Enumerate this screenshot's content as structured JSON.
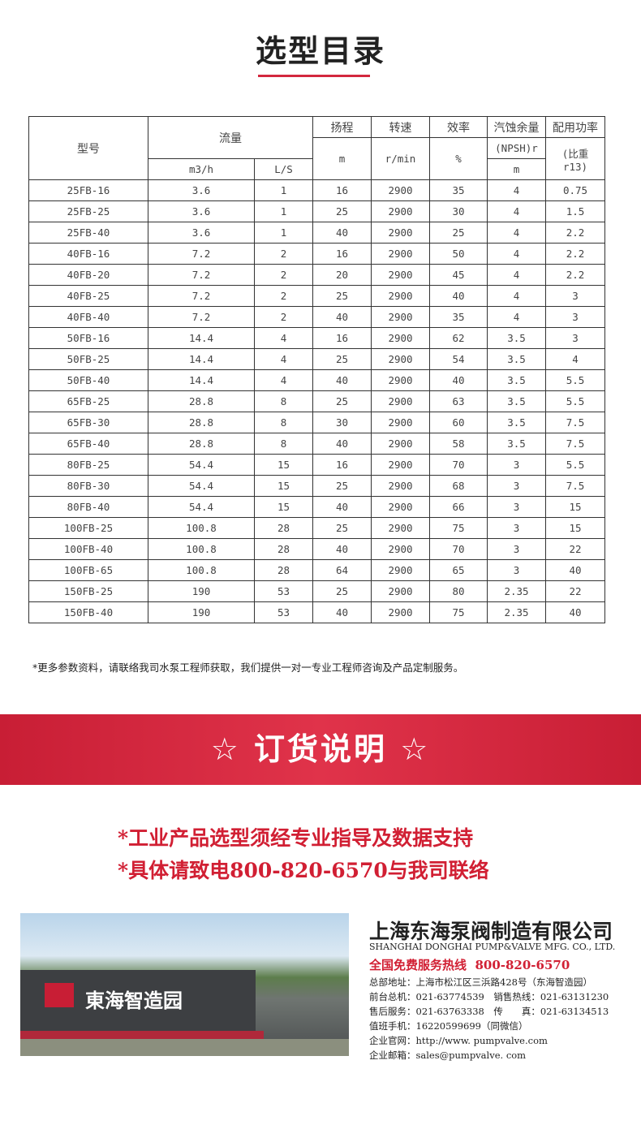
{
  "title": "选型目录",
  "table": {
    "headers": {
      "model": "型号",
      "flow": "流量",
      "flow_m3h": "m3/h",
      "flow_ls": "L/S",
      "head": "扬程",
      "head_unit": "m",
      "speed": "转速",
      "speed_unit": "r/min",
      "eff": "效率",
      "eff_unit": "%",
      "npsh": "汽蚀余量",
      "npsh_sub": "(NPSH)r",
      "npsh_unit": "m",
      "power": "配用功率",
      "power_sub": "(比重r13)"
    },
    "rows": [
      [
        "25FB-16",
        "3.6",
        "1",
        "16",
        "2900",
        "35",
        "4",
        "0.75"
      ],
      [
        "25FB-25",
        "3.6",
        "1",
        "25",
        "2900",
        "30",
        "4",
        "1.5"
      ],
      [
        "25FB-40",
        "3.6",
        "1",
        "40",
        "2900",
        "25",
        "4",
        "2.2"
      ],
      [
        "40FB-16",
        "7.2",
        "2",
        "16",
        "2900",
        "50",
        "4",
        "2.2"
      ],
      [
        "40FB-20",
        "7.2",
        "2",
        "20",
        "2900",
        "45",
        "4",
        "2.2"
      ],
      [
        "40FB-25",
        "7.2",
        "2",
        "25",
        "2900",
        "40",
        "4",
        "3"
      ],
      [
        "40FB-40",
        "7.2",
        "2",
        "40",
        "2900",
        "35",
        "4",
        "3"
      ],
      [
        "50FB-16",
        "14.4",
        "4",
        "16",
        "2900",
        "62",
        "3.5",
        "3"
      ],
      [
        "50FB-25",
        "14.4",
        "4",
        "25",
        "2900",
        "54",
        "3.5",
        "4"
      ],
      [
        "50FB-40",
        "14.4",
        "4",
        "40",
        "2900",
        "40",
        "3.5",
        "5.5"
      ],
      [
        "65FB-25",
        "28.8",
        "8",
        "25",
        "2900",
        "63",
        "3.5",
        "5.5"
      ],
      [
        "65FB-30",
        "28.8",
        "8",
        "30",
        "2900",
        "60",
        "3.5",
        "7.5"
      ],
      [
        "65FB-40",
        "28.8",
        "8",
        "40",
        "2900",
        "58",
        "3.5",
        "7.5"
      ],
      [
        "80FB-25",
        "54.4",
        "15",
        "16",
        "2900",
        "70",
        "3",
        "5.5"
      ],
      [
        "80FB-30",
        "54.4",
        "15",
        "25",
        "2900",
        "68",
        "3",
        "7.5"
      ],
      [
        "80FB-40",
        "54.4",
        "15",
        "40",
        "2900",
        "66",
        "3",
        "15"
      ],
      [
        "100FB-25",
        "100.8",
        "28",
        "25",
        "2900",
        "75",
        "3",
        "15"
      ],
      [
        "100FB-40",
        "100.8",
        "28",
        "40",
        "2900",
        "70",
        "3",
        "22"
      ],
      [
        "100FB-65",
        "100.8",
        "28",
        "64",
        "2900",
        "65",
        "3",
        "40"
      ],
      [
        "150FB-25",
        "190",
        "53",
        "25",
        "2900",
        "80",
        "2.35",
        "22"
      ],
      [
        "150FB-40",
        "190",
        "53",
        "40",
        "2900",
        "75",
        "2.35",
        "40"
      ]
    ]
  },
  "note": "*更多参数资料，请联络我司水泵工程师获取，我们提供一对一专业工程师咨询及产品定制服务。",
  "banner": "☆ 订货说明 ☆",
  "lines": [
    "*工业产品选型须经专业指导及数据支持",
    "*具体请致电800-820-6570与我司联络"
  ],
  "photo_sign": "東海智造园",
  "company": {
    "name": "上海东海泵阀制造有限公司",
    "name_en": "SHANGHAI DONGHAI PUMP&VALVE MFG. CO., LTD.",
    "hotline": "全国免费服务热线  800-820-6570",
    "info": [
      "总部地址：上海市松江区三浜路428号（东海智造园）",
      "前台总机：021-63774539　销售热线：021-63131230",
      "售后服务：021-63763338　传　　真：021-63134513",
      "值班手机：16220599699（同微信）",
      "企业官网：http://www. pumpvalve.com",
      "企业邮箱：sales@pumpvalve. com"
    ]
  },
  "colors": {
    "accent": "#d3283e"
  }
}
